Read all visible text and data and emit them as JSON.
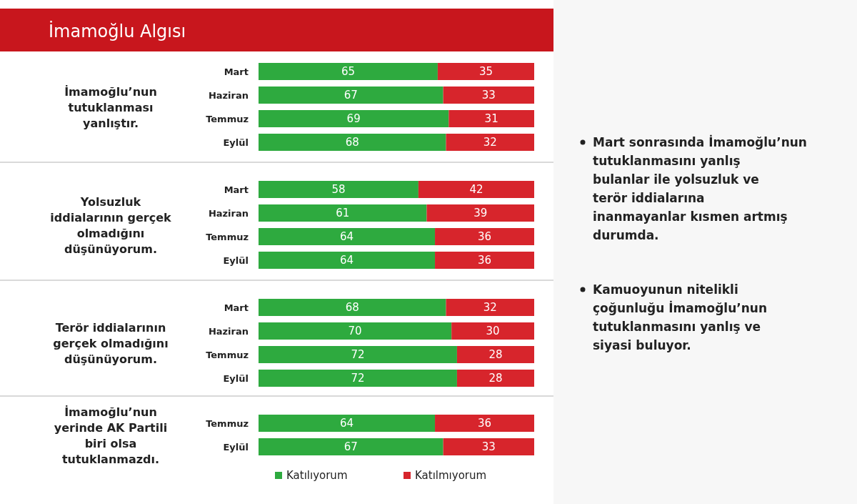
{
  "chart_data": [
    {
      "type": "bar",
      "title": "İmamoğlu Algısı",
      "ylabel": "İmamoğlu’nun tutuklanması yanlıştır.",
      "orientation": "horizontal",
      "stacked": true,
      "data_labels": true,
      "xlim": [
        0,
        100
      ],
      "categories": [
        "Mart",
        "Haziran",
        "Temmuz",
        "Eylül"
      ],
      "series": [
        {
          "color": "#2eaa3f",
          "values": [
            65,
            67,
            69,
            68
          ]
        },
        {
          "color": "#d7252c",
          "values": [
            35,
            33,
            31,
            32
          ]
        }
      ]
    },
    {
      "type": "bar",
      "ylabel": "Yolsuzluk iddialarının gerçek olmadığını düşünüyorum.",
      "orientation": "horizontal",
      "stacked": true,
      "data_labels": true,
      "xlim": [
        0,
        100
      ],
      "categories": [
        "Mart",
        "Haziran",
        "Temmuz",
        "Eylül"
      ],
      "series": [
        {
          "color": "#2eaa3f",
          "values": [
            58,
            61,
            64,
            64
          ]
        },
        {
          "color": "#d7252c",
          "values": [
            42,
            39,
            36,
            36
          ]
        }
      ]
    },
    {
      "type": "bar",
      "ylabel": "Terör iddialarının gerçek olmadığını düşünüyorum.",
      "orientation": "horizontal",
      "stacked": true,
      "data_labels": true,
      "xlim": [
        0,
        100
      ],
      "categories": [
        "Mart",
        "Haziran",
        "Temmuz",
        "Eylül"
      ],
      "series": [
        {
          "color": "#2eaa3f",
          "values": [
            68,
            70,
            72,
            72
          ]
        },
        {
          "color": "#d7252c",
          "values": [
            32,
            30,
            28,
            28
          ]
        }
      ]
    },
    {
      "type": "bar",
      "ylabel": "İmamoğlu’nun yerinde AK Partili biri olsa tutuklanmazdı.",
      "orientation": "horizontal",
      "stacked": true,
      "data_labels": true,
      "xlim": [
        0,
        100
      ],
      "legend": "bottom",
      "categories": [
        "Temmuz",
        "Eylül"
      ],
      "series": [
        {
          "name": "Katılıyorum",
          "color": "#2eaa3f",
          "values": [
            64,
            67
          ]
        },
        {
          "name": "Katılmıyorum",
          "color": "#d7252c",
          "values": [
            36,
            33
          ]
        }
      ]
    },
    {
      "type": "other",
      "annotations": [
        "Mart sonrasında İmamoğlu’nun tutuklanmasını yanlış bulanlar ile yolsuzluk ve terör iddialarına inanmayanlar kısmen artmış durumda.",
        "Kamuoyunun nitelikli çoğunluğu İmamoğlu’nun tutuklanmasını yanlış ve siyasi buluyor."
      ]
    }
  ]
}
